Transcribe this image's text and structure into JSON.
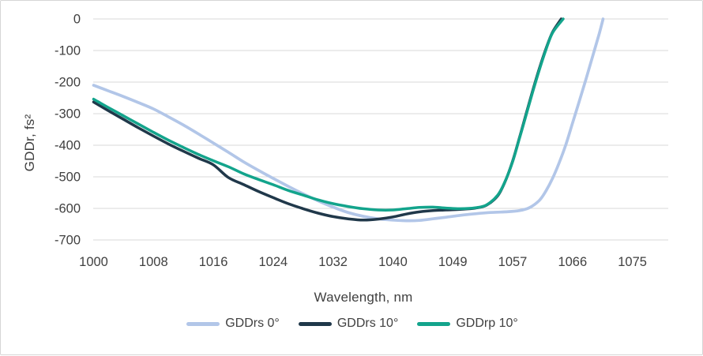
{
  "chart_data": {
    "type": "line",
    "title": "",
    "xlabel": "Wavelength, nm",
    "ylabel": "GDDr, fs²",
    "x_ticks": [
      1000,
      1008,
      1016,
      1024,
      1032,
      1040,
      1049,
      1057,
      1066,
      1075
    ],
    "y_ticks": [
      0,
      -100,
      -200,
      -300,
      -400,
      -500,
      -600,
      -700
    ],
    "ylim": [
      -700,
      0
    ],
    "grid": "horizontal",
    "grid_color": "#d9d9d9",
    "axis_text_color": "#404040",
    "legend_position": "bottom",
    "series": [
      {
        "name": "GDDrs 0°",
        "color": "#b2c6e8",
        "stroke_width": 3.7,
        "points": [
          [
            1000,
            -210
          ],
          [
            1002,
            -228
          ],
          [
            1004,
            -246
          ],
          [
            1006,
            -265
          ],
          [
            1008,
            -285
          ],
          [
            1010,
            -310
          ],
          [
            1012,
            -336
          ],
          [
            1014,
            -364
          ],
          [
            1016,
            -393
          ],
          [
            1018,
            -422
          ],
          [
            1020,
            -452
          ],
          [
            1022,
            -479
          ],
          [
            1024,
            -505
          ],
          [
            1026,
            -530
          ],
          [
            1028,
            -554
          ],
          [
            1030,
            -576
          ],
          [
            1032,
            -596
          ],
          [
            1034,
            -613
          ],
          [
            1036,
            -625
          ],
          [
            1038,
            -633
          ],
          [
            1040,
            -637
          ],
          [
            1042,
            -639
          ],
          [
            1044,
            -638
          ],
          [
            1046,
            -633
          ],
          [
            1048,
            -628
          ],
          [
            1050,
            -622
          ],
          [
            1052,
            -617
          ],
          [
            1054,
            -613
          ],
          [
            1056,
            -611
          ],
          [
            1058,
            -607
          ],
          [
            1059.5,
            -598
          ],
          [
            1061,
            -575
          ],
          [
            1062,
            -545
          ],
          [
            1063,
            -505
          ],
          [
            1064,
            -455
          ],
          [
            1065,
            -398
          ],
          [
            1066,
            -330
          ],
          [
            1067,
            -262
          ],
          [
            1068,
            -192
          ],
          [
            1069,
            -120
          ],
          [
            1070,
            -48
          ],
          [
            1070.6,
            0
          ]
        ]
      },
      {
        "name": "GDDrs 10°",
        "color": "#20384a",
        "stroke_width": 3.5,
        "points": [
          [
            1000,
            -263
          ],
          [
            1002,
            -291
          ],
          [
            1004,
            -318
          ],
          [
            1006,
            -345
          ],
          [
            1008,
            -371
          ],
          [
            1010,
            -396
          ],
          [
            1012,
            -419
          ],
          [
            1014,
            -441
          ],
          [
            1016,
            -462
          ],
          [
            1018,
            -502
          ],
          [
            1020,
            -524
          ],
          [
            1022,
            -546
          ],
          [
            1024,
            -566
          ],
          [
            1026,
            -585
          ],
          [
            1028,
            -601
          ],
          [
            1030,
            -615
          ],
          [
            1032,
            -626
          ],
          [
            1034,
            -633
          ],
          [
            1036,
            -637
          ],
          [
            1038,
            -634
          ],
          [
            1040,
            -627
          ],
          [
            1042,
            -618
          ],
          [
            1044,
            -611
          ],
          [
            1046,
            -607
          ],
          [
            1048,
            -605
          ],
          [
            1050,
            -603
          ],
          [
            1052,
            -599
          ],
          [
            1053.5,
            -590
          ],
          [
            1055,
            -560
          ],
          [
            1056,
            -515
          ],
          [
            1057,
            -450
          ],
          [
            1058,
            -378
          ],
          [
            1059,
            -302
          ],
          [
            1060,
            -228
          ],
          [
            1061,
            -158
          ],
          [
            1062,
            -95
          ],
          [
            1063,
            -42
          ],
          [
            1064.3,
            0
          ]
        ]
      },
      {
        "name": "GDDrp 10°",
        "color": "#13a48c",
        "stroke_width": 3.5,
        "points": [
          [
            1000,
            -254
          ],
          [
            1002,
            -281
          ],
          [
            1004,
            -307
          ],
          [
            1006,
            -333
          ],
          [
            1008,
            -359
          ],
          [
            1010,
            -384
          ],
          [
            1012,
            -407
          ],
          [
            1014,
            -429
          ],
          [
            1016,
            -449
          ],
          [
            1018,
            -468
          ],
          [
            1020,
            -490
          ],
          [
            1022,
            -508
          ],
          [
            1024,
            -525
          ],
          [
            1026,
            -543
          ],
          [
            1028,
            -558
          ],
          [
            1030,
            -573
          ],
          [
            1032,
            -585
          ],
          [
            1034,
            -594
          ],
          [
            1036,
            -601
          ],
          [
            1038,
            -605
          ],
          [
            1040,
            -605
          ],
          [
            1042,
            -601
          ],
          [
            1044,
            -597
          ],
          [
            1046,
            -596
          ],
          [
            1048,
            -599
          ],
          [
            1050,
            -601
          ],
          [
            1052,
            -598
          ],
          [
            1053.5,
            -589
          ],
          [
            1055,
            -558
          ],
          [
            1056,
            -514
          ],
          [
            1057,
            -452
          ],
          [
            1058,
            -380
          ],
          [
            1059,
            -306
          ],
          [
            1060,
            -232
          ],
          [
            1061,
            -162
          ],
          [
            1062,
            -98
          ],
          [
            1063,
            -44
          ],
          [
            1064.6,
            0
          ]
        ]
      }
    ]
  }
}
